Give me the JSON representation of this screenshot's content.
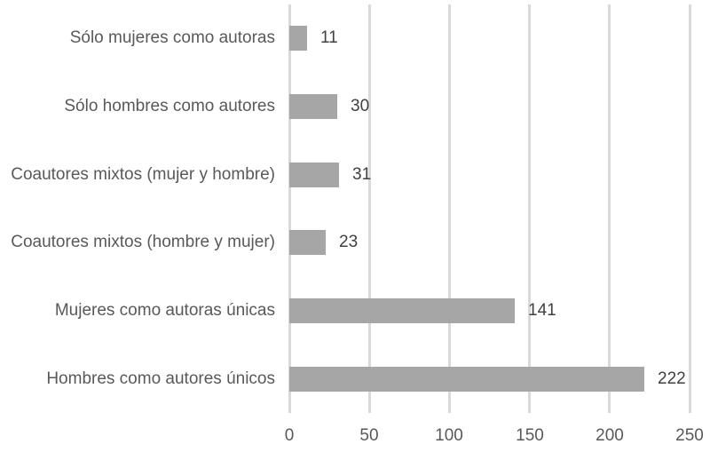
{
  "chart_data": {
    "type": "bar",
    "orientation": "horizontal",
    "title": "",
    "xlabel": "",
    "ylabel": "",
    "categories": [
      "Sólo mujeres como autoras",
      "Sólo hombres como autores",
      "Coautores mixtos (mujer y hombre)",
      "Coautores mixtos (hombre y mujer)",
      "Mujeres como autoras únicas",
      "Hombres como autores únicos"
    ],
    "values": [
      11,
      30,
      31,
      23,
      141,
      222
    ],
    "data_labels": [
      "11",
      "30",
      "31",
      "23",
      "141",
      "222"
    ],
    "xlim": [
      0,
      250
    ],
    "x_ticks": [
      "0",
      "50",
      "100",
      "150",
      "200",
      "250"
    ],
    "grid": true,
    "legend": false,
    "colors": {
      "bar": "#a6a6a6",
      "gridline": "#d9d9d9",
      "axis_line": "#d9d9d9",
      "category_label": "#595959",
      "value_label": "#404040",
      "tick_label": "#595959",
      "background": "#ffffff"
    }
  }
}
